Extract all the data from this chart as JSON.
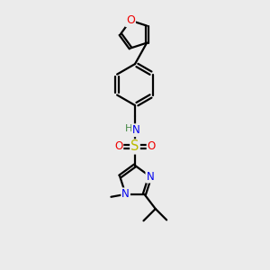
{
  "bg_color": "#ebebeb",
  "atom_colors": {
    "C": "#000000",
    "N": "#0000ee",
    "O": "#ee0000",
    "S": "#bbbb00",
    "H": "#448844"
  },
  "bond_color": "#000000",
  "bond_width": 1.6,
  "font_size": 8.5,
  "fig_size": [
    3.0,
    3.0
  ],
  "dpi": 100
}
